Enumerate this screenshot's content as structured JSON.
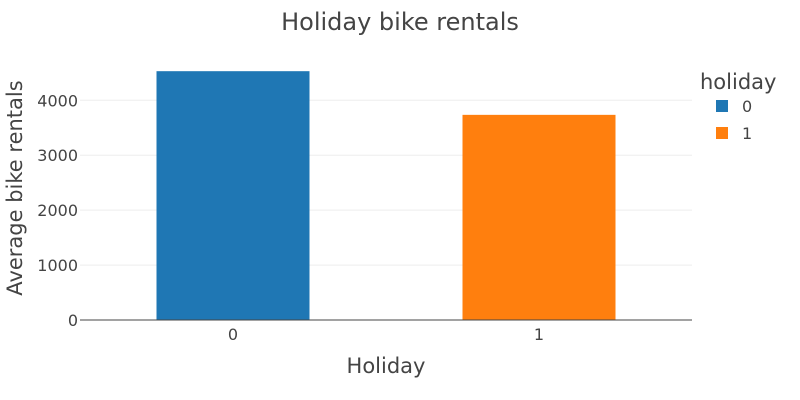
{
  "chart_data": {
    "type": "bar",
    "title": "Holiday bike rentals",
    "xlabel": "Holiday",
    "ylabel": "Average bike rentals",
    "categories": [
      "0",
      "1"
    ],
    "series": [
      {
        "name": "0",
        "category": "0",
        "value": 4530,
        "color": "#1f77b4"
      },
      {
        "name": "1",
        "category": "1",
        "value": 3735,
        "color": "#ff7f0e"
      }
    ],
    "yticks": [
      0,
      1000,
      2000,
      3000,
      4000
    ],
    "ytick_labels": [
      "0",
      "1000",
      "2000",
      "3000",
      "4000"
    ],
    "ylim": [
      0,
      4770
    ],
    "grid": true,
    "legend": {
      "title": "holiday",
      "position": "top-right",
      "entries": [
        "0",
        "1"
      ]
    }
  }
}
